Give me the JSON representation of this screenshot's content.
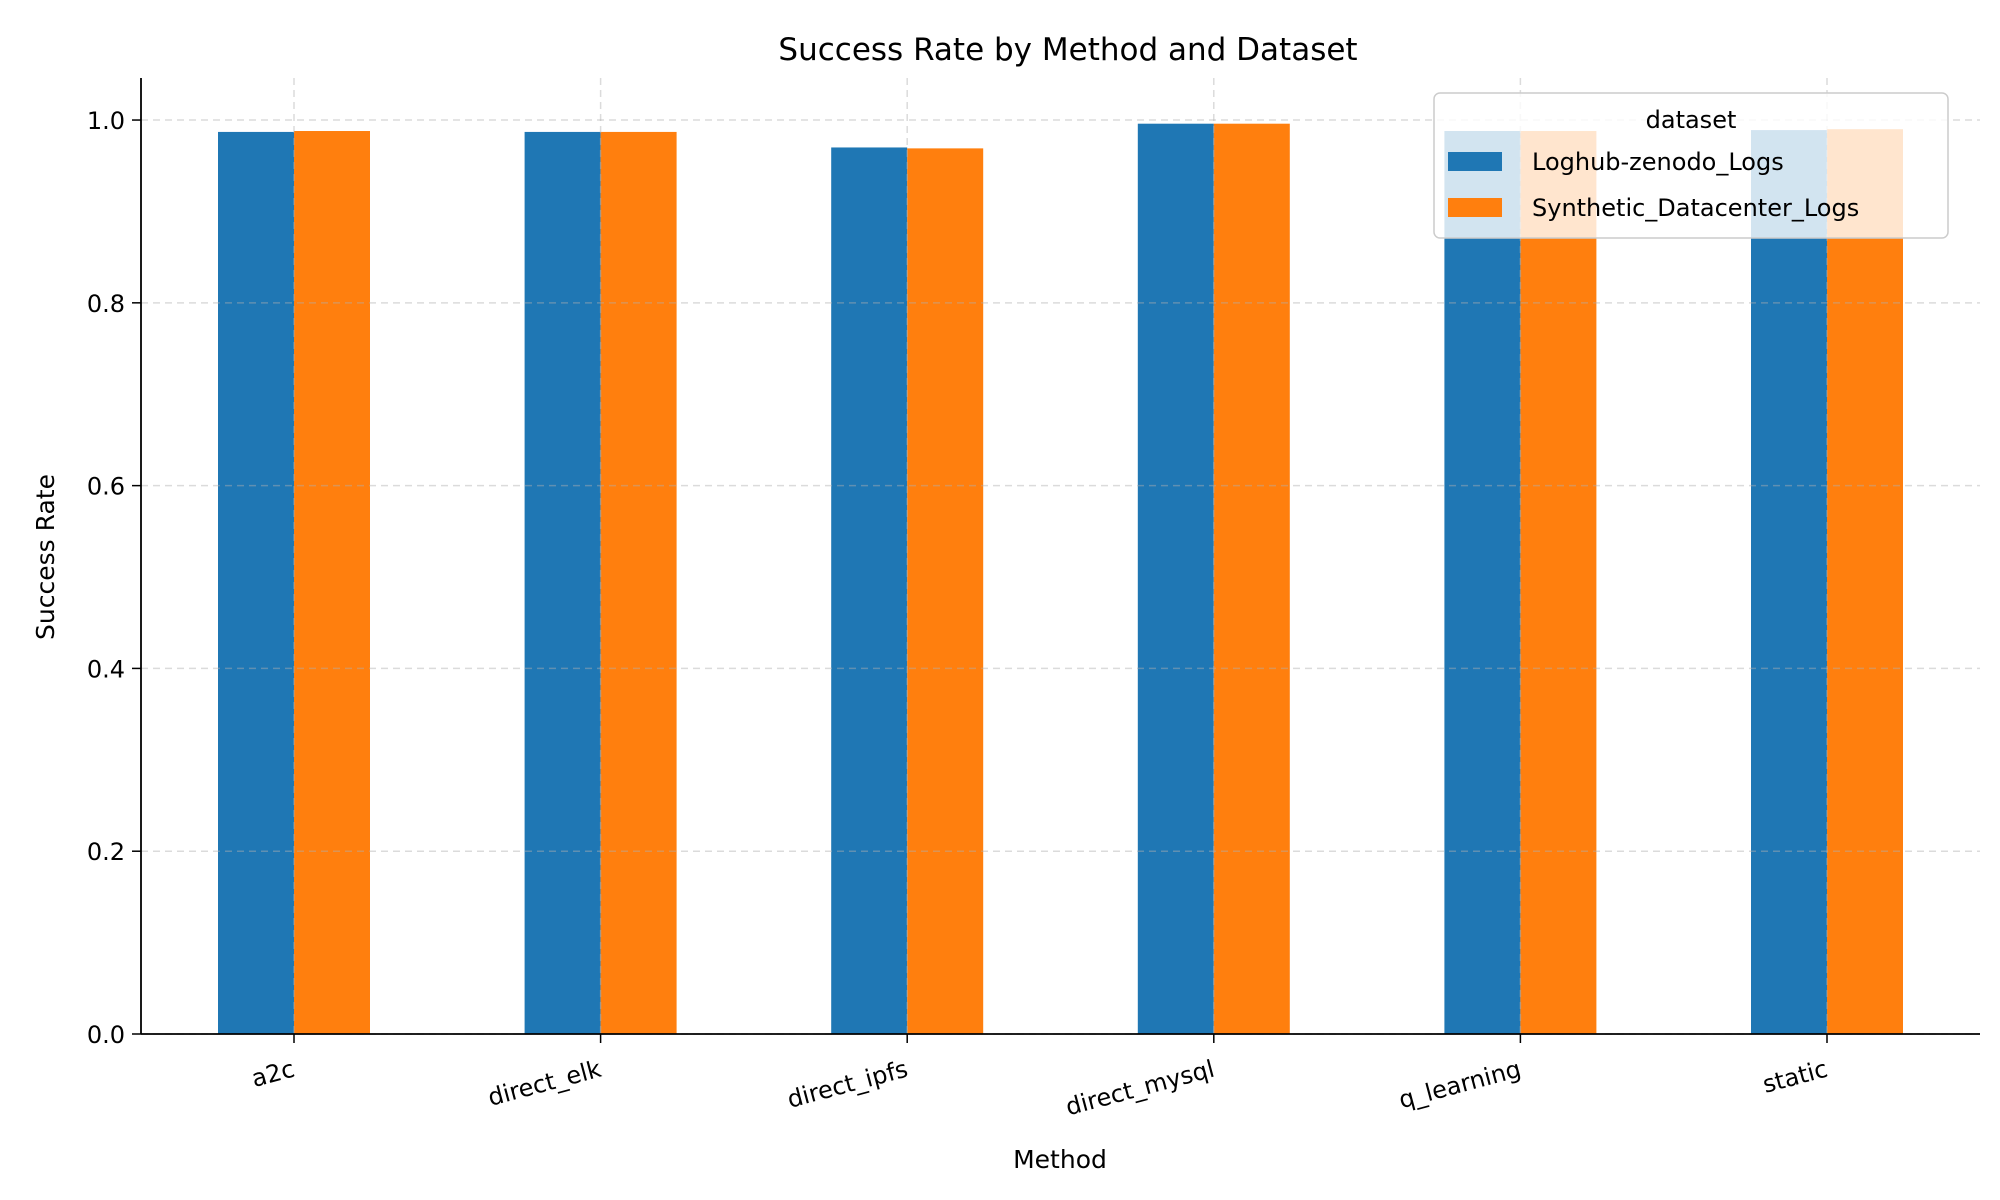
{
  "chart_data": {
    "type": "bar",
    "title": "Success Rate by Method and Dataset",
    "xlabel": "Method",
    "ylabel": "Success Rate",
    "categories": [
      "a2c",
      "direct_elk",
      "direct_ipfs",
      "direct_mysql",
      "q_learning",
      "static"
    ],
    "series": [
      {
        "name": "Loghub-zenodo_Logs",
        "color": "#1f77b4",
        "values": [
          0.987,
          0.987,
          0.97,
          0.996,
          0.988,
          0.989
        ]
      },
      {
        "name": "Synthetic_Datacenter_Logs",
        "color": "#ff7f0e",
        "values": [
          0.988,
          0.987,
          0.969,
          0.996,
          0.988,
          0.99
        ]
      }
    ],
    "ylim": [
      0,
      1.046
    ],
    "yticks": [
      "0.0",
      "0.2",
      "0.4",
      "0.6",
      "0.8",
      "1.0"
    ],
    "grid": true,
    "legend": {
      "title": "dataset",
      "placement": "top-right"
    }
  }
}
